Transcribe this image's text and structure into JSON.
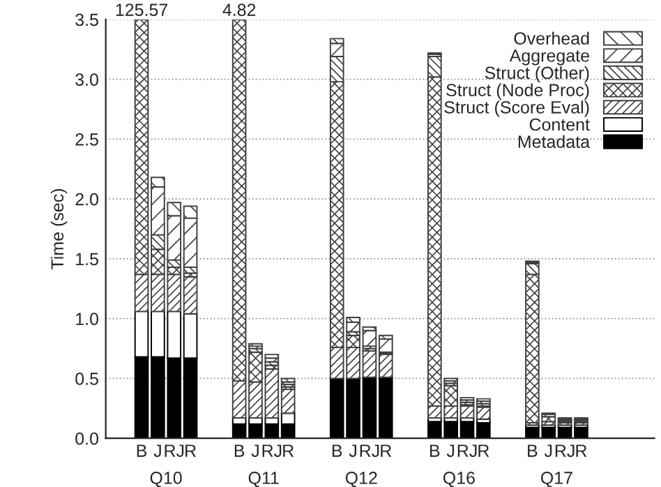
{
  "chart_data": {
    "type": "bar",
    "stacked": true,
    "ylabel": "Time (sec)",
    "categories": [
      "B",
      "J",
      "RJ",
      "R",
      null,
      null,
      "B",
      "J",
      "RJ",
      "R",
      null,
      null,
      "B",
      "J",
      "RJ",
      "R",
      null,
      null,
      "B",
      "J",
      "RJ",
      "R",
      null,
      null,
      "B",
      "J",
      "RJ",
      "R"
    ],
    "series": [
      {
        "name": "Metadata",
        "color": "#000000",
        "values": [
          0.68,
          0.68,
          0.67,
          0.67,
          null,
          null,
          0.12,
          0.12,
          0.12,
          0.12,
          null,
          null,
          0.5,
          0.5,
          0.51,
          0.51,
          null,
          null,
          0.14,
          0.14,
          0.14,
          0.13,
          null,
          null,
          0.09,
          0.09,
          0.09,
          0.09
        ]
      },
      {
        "name": "Content",
        "color": "#ffffff",
        "values": [
          0.38,
          0.38,
          0.39,
          0.37,
          null,
          null,
          0.05,
          0.05,
          0.05,
          0.09,
          null,
          null,
          null,
          null,
          null,
          null,
          null,
          null,
          0.03,
          0.03,
          0.03,
          0.03,
          null,
          null,
          0.02,
          0.02,
          0.02,
          0.02
        ]
      },
      {
        "name": "Struct (Score Eval)",
        "color": "#404040",
        "values": [
          0.31,
          0.31,
          0.31,
          0.31,
          null,
          null,
          0.31,
          0.3,
          0.41,
          0.2,
          null,
          null,
          0.26,
          0.26,
          0.22,
          0.19,
          null,
          null,
          0.1,
          0.1,
          0.1,
          0.1,
          null,
          null,
          0.02,
          0.03,
          0.02,
          0.02
        ]
      },
      {
        "name": "Struct (Node Proc)",
        "color": "#404040",
        "values": [
          2.13,
          0.21,
          0.06,
          0.03,
          null,
          null,
          3.02,
          0.25,
          0.03,
          0.02,
          null,
          null,
          2.22,
          0.1,
          0.02,
          0.01,
          null,
          null,
          2.75,
          0.17,
          0.01,
          0.01,
          null,
          null,
          1.24,
          0.04,
          0.01,
          0.01
        ]
      },
      {
        "name": "Struct (Other)",
        "color": "#404040",
        "values": [
          null,
          0.12,
          0.06,
          0.05,
          null,
          null,
          null,
          0.03,
          0.03,
          0.02,
          null,
          null,
          0.21,
          0.03,
          0.02,
          0.01,
          null,
          null,
          0.17,
          0.02,
          0.02,
          0.02,
          null,
          null,
          0.09,
          null,
          0.01,
          0.01
        ]
      },
      {
        "name": "Aggregate",
        "color": "#404040",
        "values": [
          null,
          0.4,
          0.37,
          0.41,
          null,
          null,
          null,
          0.02,
          0.03,
          0.02,
          null,
          null,
          0.11,
          0.08,
          0.13,
          0.11,
          null,
          null,
          0.02,
          0.02,
          0.02,
          0.02,
          null,
          null,
          0.01,
          0.02,
          0.01,
          0.01
        ]
      },
      {
        "name": "Overhead",
        "color": "#404040",
        "values": [
          null,
          0.08,
          0.11,
          0.1,
          null,
          null,
          null,
          0.02,
          0.03,
          0.03,
          null,
          null,
          0.04,
          0.04,
          0.03,
          0.03,
          null,
          null,
          0.01,
          0.02,
          0.02,
          0.02,
          null,
          null,
          0.01,
          0.01,
          0.01,
          0.01
        ]
      }
    ],
    "annotations": [
      "125.57",
      "4.82",
      "Q10",
      "Q11",
      "Q12",
      "Q16",
      "Q17"
    ],
    "ylim": [
      0,
      3.5
    ],
    "yticks": [
      {
        "value": 0,
        "label": "0.0"
      },
      0.5,
      {
        "value": 1,
        "label": "1.0"
      },
      1.5,
      {
        "value": 2,
        "label": "2.0"
      },
      2.5,
      {
        "value": 3,
        "label": "3.0"
      },
      3.5
    ],
    "grid": "y",
    "legend": "top right"
  }
}
